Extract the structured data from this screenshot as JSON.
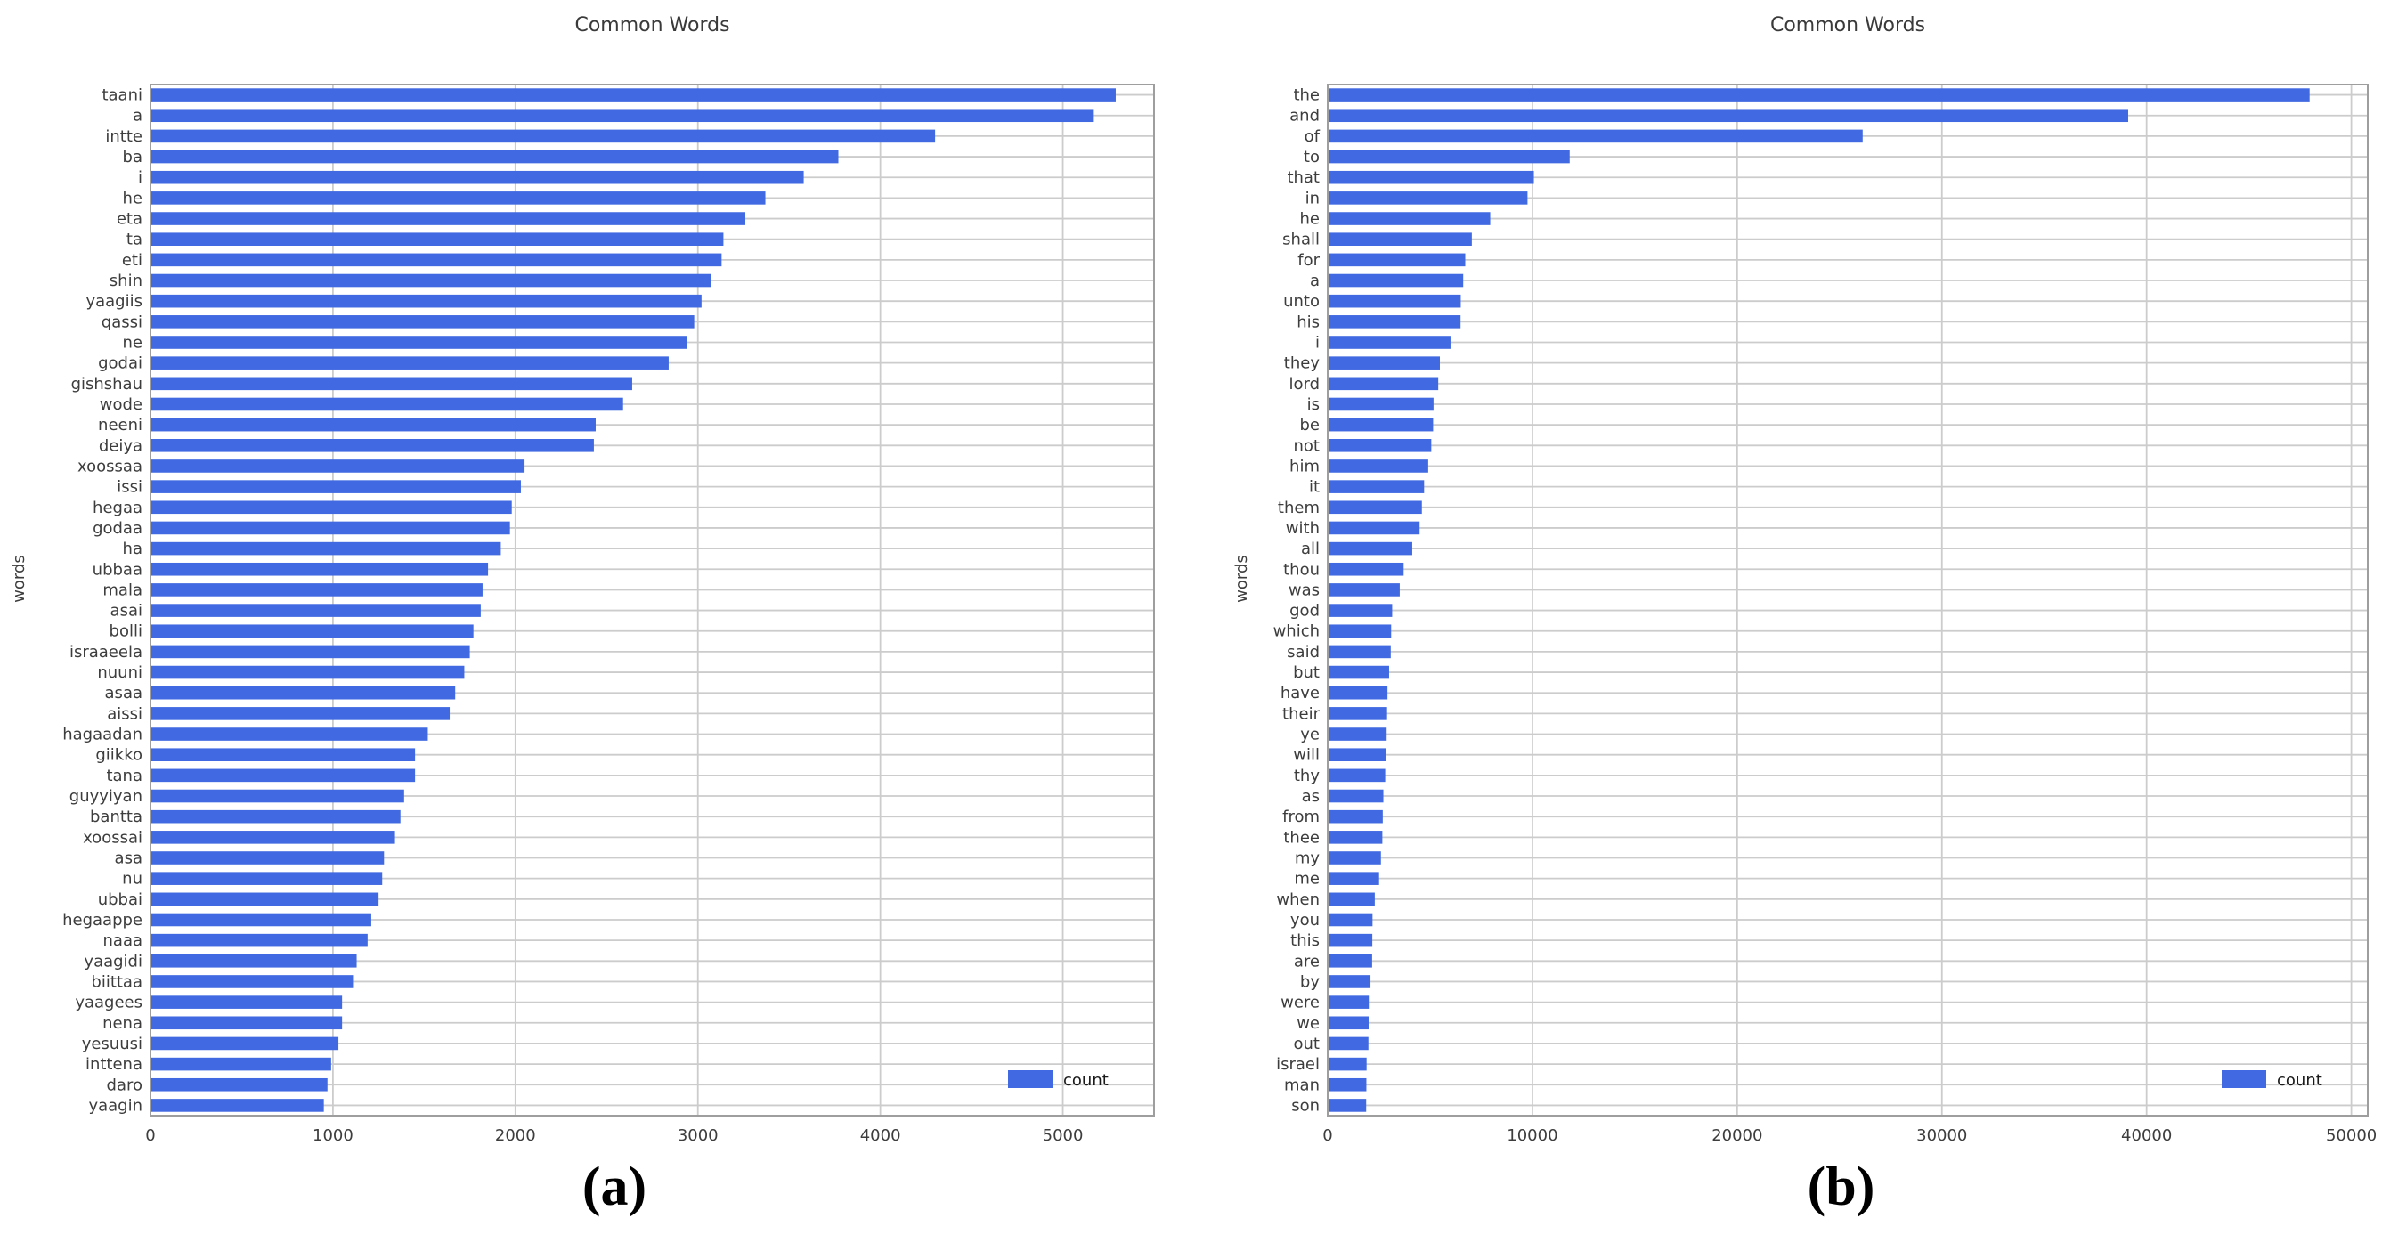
{
  "figure": {
    "background": "#ffffff",
    "captions": {
      "a": "(a)",
      "b": "(b)"
    }
  },
  "colors": {
    "bar": "#4169E1",
    "grid": "#cccccc",
    "spine": "#9e9e9e",
    "tick_text": "#3d3d3d",
    "title_text": "#3a3a3a"
  },
  "chart_data": [
    {
      "type": "bar",
      "orientation": "horizontal",
      "title": "Common Words",
      "xlabel": "",
      "ylabel": "words",
      "legend": [
        "count"
      ],
      "legend_position": "lower right",
      "grid": true,
      "xlim": [
        0,
        5500
      ],
      "xticks": [
        0,
        1000,
        2000,
        3000,
        4000,
        5000
      ],
      "categories": [
        "taani",
        "a",
        "intte",
        "ba",
        "i",
        "he",
        "eta",
        "ta",
        "eti",
        "shin",
        "yaagiis",
        "qassi",
        "ne",
        "godai",
        "gishshau",
        "wode",
        "neeni",
        "deiya",
        "xoossaa",
        "issi",
        "hegaa",
        "godaa",
        "ha",
        "ubbaa",
        "mala",
        "asai",
        "bolli",
        "israaeela",
        "nuuni",
        "asaa",
        "aissi",
        "hagaadan",
        "giikko",
        "tana",
        "guyyiyan",
        "bantta",
        "xoossai",
        "asa",
        "nu",
        "ubbai",
        "hegaappe",
        "naaa",
        "yaagidi",
        "biittaa",
        "yaagees",
        "nena",
        "yesuusi",
        "inttena",
        "daro",
        "yaagin"
      ],
      "values": [
        5290,
        5170,
        4300,
        3770,
        3580,
        3370,
        3260,
        3140,
        3130,
        3070,
        3020,
        2980,
        2940,
        2840,
        2640,
        2590,
        2440,
        2430,
        2050,
        2030,
        1980,
        1970,
        1920,
        1850,
        1820,
        1810,
        1770,
        1750,
        1720,
        1670,
        1640,
        1520,
        1450,
        1450,
        1390,
        1370,
        1340,
        1280,
        1270,
        1250,
        1210,
        1190,
        1130,
        1110,
        1050,
        1050,
        1030,
        990,
        970,
        950
      ]
    },
    {
      "type": "bar",
      "orientation": "horizontal",
      "title": "Common Words",
      "xlabel": "",
      "ylabel": "words",
      "legend": [
        "count"
      ],
      "legend_position": "lower right",
      "grid": true,
      "xlim": [
        0,
        50800
      ],
      "xticks": [
        0,
        10000,
        20000,
        30000,
        40000,
        50000
      ],
      "categories": [
        "the",
        "and",
        "of",
        "to",
        "that",
        "in",
        "he",
        "shall",
        "for",
        "a",
        "unto",
        "his",
        "i",
        "they",
        "lord",
        "is",
        "be",
        "not",
        "him",
        "it",
        "them",
        "with",
        "all",
        "thou",
        "was",
        "god",
        "which",
        "said",
        "but",
        "have",
        "their",
        "ye",
        "will",
        "thy",
        "as",
        "from",
        "thee",
        "my",
        "me",
        "when",
        "you",
        "this",
        "are",
        "by",
        "were",
        "we",
        "out",
        "israel",
        "man",
        "son"
      ],
      "values": [
        47960,
        39100,
        26130,
        11820,
        10070,
        9760,
        7940,
        7040,
        6720,
        6620,
        6500,
        6490,
        6000,
        5480,
        5400,
        5170,
        5150,
        5060,
        4910,
        4710,
        4600,
        4490,
        4130,
        3710,
        3520,
        3150,
        3100,
        3080,
        3000,
        2920,
        2900,
        2880,
        2830,
        2810,
        2720,
        2690,
        2670,
        2600,
        2510,
        2300,
        2190,
        2180,
        2170,
        2090,
        2010,
        2000,
        1990,
        1900,
        1890,
        1880
      ]
    }
  ]
}
